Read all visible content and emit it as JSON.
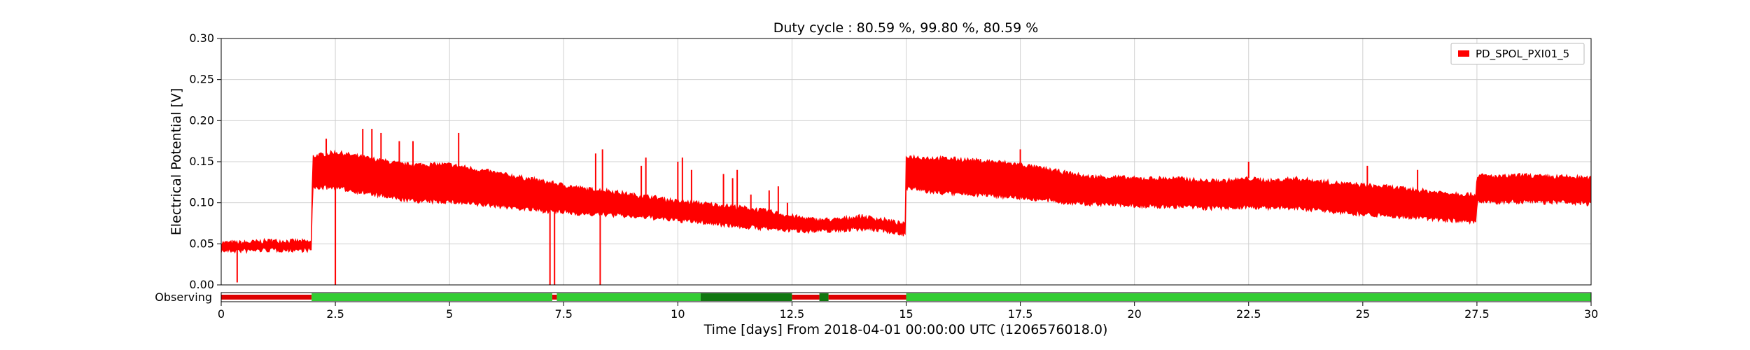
{
  "chart_data": {
    "type": "line",
    "title": "Duty cycle : 80.59 %, 99.80 %, 80.59 %",
    "xlabel": "Time [days] From 2018-04-01 00:00:00 UTC (1206576018.0)",
    "ylabel": "Electrical Potential [V]",
    "xlim": [
      0,
      30
    ],
    "ylim": [
      0,
      0.3
    ],
    "x_ticks": [
      0,
      2.5,
      5,
      7.5,
      10,
      12.5,
      15,
      17.5,
      20,
      22.5,
      25,
      27.5,
      30
    ],
    "x_tick_labels": [
      "0",
      "2.5",
      "5",
      "7.5",
      "10",
      "12.5",
      "15",
      "17.5",
      "20",
      "22.5",
      "25",
      "27.5",
      "30"
    ],
    "y_ticks": [
      0,
      0.05,
      0.1,
      0.15,
      0.2,
      0.25,
      0.3
    ],
    "y_tick_labels": [
      "0.00",
      "0.05",
      "0.10",
      "0.15",
      "0.20",
      "0.25",
      "0.30"
    ],
    "grid": true,
    "legend_position": "top-right",
    "series": [
      {
        "name": "PD_SPOL_PXI01_5",
        "color": "#ff0000",
        "x": [
          0,
          0.5,
          1,
          1.5,
          1.98,
          2.0,
          2.5,
          3,
          3.5,
          4,
          4.5,
          5,
          5.5,
          6,
          6.5,
          7,
          7.5,
          8,
          8.5,
          9,
          9.5,
          10,
          10.5,
          11,
          11.5,
          12,
          12.5,
          13,
          13.5,
          14,
          14.5,
          14.98,
          15.0,
          15.5,
          16,
          16.5,
          17,
          17.5,
          18,
          18.5,
          19,
          19.5,
          20,
          20.5,
          21,
          21.5,
          22,
          22.5,
          23,
          23.5,
          24,
          24.5,
          25,
          25.5,
          26,
          26.5,
          27,
          27.48,
          27.5,
          28,
          28.5,
          29,
          29.5,
          30
        ],
        "upper": [
          0.05,
          0.05,
          0.052,
          0.052,
          0.051,
          0.155,
          0.16,
          0.155,
          0.15,
          0.145,
          0.145,
          0.145,
          0.14,
          0.135,
          0.13,
          0.125,
          0.12,
          0.115,
          0.113,
          0.108,
          0.105,
          0.1,
          0.098,
          0.095,
          0.092,
          0.088,
          0.082,
          0.078,
          0.078,
          0.082,
          0.078,
          0.072,
          0.155,
          0.153,
          0.152,
          0.15,
          0.148,
          0.145,
          0.14,
          0.135,
          0.13,
          0.13,
          0.128,
          0.128,
          0.128,
          0.125,
          0.125,
          0.128,
          0.125,
          0.128,
          0.125,
          0.122,
          0.12,
          0.118,
          0.115,
          0.112,
          0.11,
          0.108,
          0.132,
          0.13,
          0.132,
          0.13,
          0.13,
          0.128
        ],
        "lower": [
          0.043,
          0.043,
          0.044,
          0.044,
          0.044,
          0.12,
          0.12,
          0.115,
          0.11,
          0.105,
          0.103,
          0.103,
          0.1,
          0.098,
          0.095,
          0.092,
          0.09,
          0.088,
          0.087,
          0.085,
          0.083,
          0.08,
          0.078,
          0.075,
          0.072,
          0.07,
          0.068,
          0.067,
          0.068,
          0.07,
          0.068,
          0.063,
          0.12,
          0.115,
          0.113,
          0.112,
          0.11,
          0.108,
          0.105,
          0.102,
          0.1,
          0.1,
          0.098,
          0.097,
          0.097,
          0.095,
          0.095,
          0.097,
          0.095,
          0.095,
          0.093,
          0.09,
          0.088,
          0.086,
          0.084,
          0.082,
          0.08,
          0.078,
          0.103,
          0.102,
          0.103,
          0.102,
          0.102,
          0.1
        ],
        "spikes": [
          {
            "x": 0.35,
            "y0": 0.045,
            "y1": 0.003
          },
          {
            "x": 1.1,
            "y0": 0.047,
            "y1": 0.056
          },
          {
            "x": 2.5,
            "y0": 0.12,
            "y1": 0.0
          },
          {
            "x": 2.3,
            "y0": 0.14,
            "y1": 0.178
          },
          {
            "x": 3.1,
            "y0": 0.14,
            "y1": 0.19
          },
          {
            "x": 3.3,
            "y0": 0.14,
            "y1": 0.19
          },
          {
            "x": 3.5,
            "y0": 0.14,
            "y1": 0.185
          },
          {
            "x": 3.9,
            "y0": 0.14,
            "y1": 0.175
          },
          {
            "x": 4.2,
            "y0": 0.14,
            "y1": 0.175
          },
          {
            "x": 5.2,
            "y0": 0.14,
            "y1": 0.185
          },
          {
            "x": 7.2,
            "y0": 0.095,
            "y1": 0.0
          },
          {
            "x": 7.3,
            "y0": 0.095,
            "y1": 0.0
          },
          {
            "x": 8.2,
            "y0": 0.11,
            "y1": 0.16
          },
          {
            "x": 8.3,
            "y0": 0.11,
            "y1": 0.0
          },
          {
            "x": 8.35,
            "y0": 0.11,
            "y1": 0.165
          },
          {
            "x": 9.2,
            "y0": 0.1,
            "y1": 0.145
          },
          {
            "x": 9.3,
            "y0": 0.1,
            "y1": 0.155
          },
          {
            "x": 10.0,
            "y0": 0.1,
            "y1": 0.15
          },
          {
            "x": 10.1,
            "y0": 0.1,
            "y1": 0.155
          },
          {
            "x": 10.3,
            "y0": 0.1,
            "y1": 0.14
          },
          {
            "x": 11.0,
            "y0": 0.09,
            "y1": 0.135
          },
          {
            "x": 11.2,
            "y0": 0.09,
            "y1": 0.13
          },
          {
            "x": 11.3,
            "y0": 0.09,
            "y1": 0.14
          },
          {
            "x": 11.6,
            "y0": 0.085,
            "y1": 0.11
          },
          {
            "x": 12.0,
            "y0": 0.085,
            "y1": 0.115
          },
          {
            "x": 12.2,
            "y0": 0.085,
            "y1": 0.12
          },
          {
            "x": 12.4,
            "y0": 0.08,
            "y1": 0.1
          },
          {
            "x": 17.5,
            "y0": 0.14,
            "y1": 0.165
          },
          {
            "x": 22.5,
            "y0": 0.13,
            "y1": 0.15
          },
          {
            "x": 25.1,
            "y0": 0.12,
            "y1": 0.145
          },
          {
            "x": 26.2,
            "y0": 0.115,
            "y1": 0.14
          }
        ]
      }
    ]
  },
  "state_bar": {
    "label": "Observing",
    "on_color": "#33cc33",
    "off_color": "#dd0000",
    "dark_color": "#117711",
    "segments": [
      {
        "x0": 0,
        "x1": 1.98,
        "state": "off"
      },
      {
        "x0": 1.98,
        "x1": 7.25,
        "state": "on"
      },
      {
        "x0": 7.25,
        "x1": 7.35,
        "state": "off"
      },
      {
        "x0": 7.35,
        "x1": 10.5,
        "state": "on"
      },
      {
        "x0": 10.5,
        "x1": 12.5,
        "state": "dark"
      },
      {
        "x0": 12.5,
        "x1": 13.1,
        "state": "off"
      },
      {
        "x0": 13.1,
        "x1": 13.3,
        "state": "dark"
      },
      {
        "x0": 13.3,
        "x1": 15.0,
        "state": "off"
      },
      {
        "x0": 15.0,
        "x1": 30,
        "state": "on"
      }
    ]
  }
}
